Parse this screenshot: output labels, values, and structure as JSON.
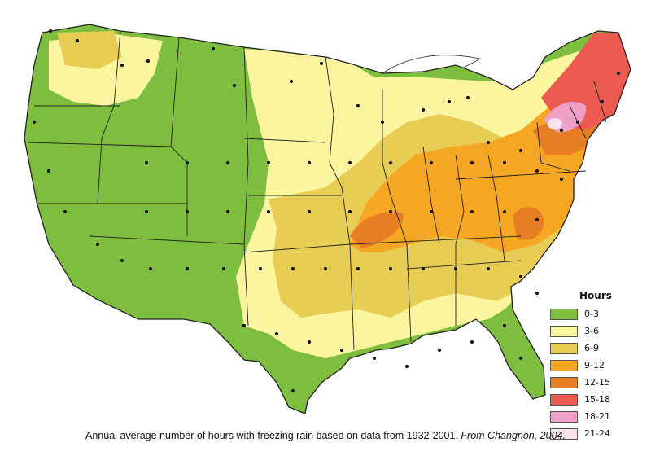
{
  "map": {
    "legend_title": "Hours",
    "legend": [
      {
        "label": "0-3",
        "color": "#7dbe3f"
      },
      {
        "label": "3-6",
        "color": "#fbf5a0"
      },
      {
        "label": "6-9",
        "color": "#e8cd55"
      },
      {
        "label": "9-12",
        "color": "#f5a623"
      },
      {
        "label": "12-15",
        "color": "#e87e23"
      },
      {
        "label": "15-18",
        "color": "#ec5a50"
      },
      {
        "label": "18-21",
        "color": "#f0a0c8"
      },
      {
        "label": "21-24",
        "color": "#f9e3ee"
      }
    ],
    "caption_text": "Annual average number of hours with freezing rain based on data from 1932-2001.",
    "caption_source": "From Changnon, 2004."
  }
}
